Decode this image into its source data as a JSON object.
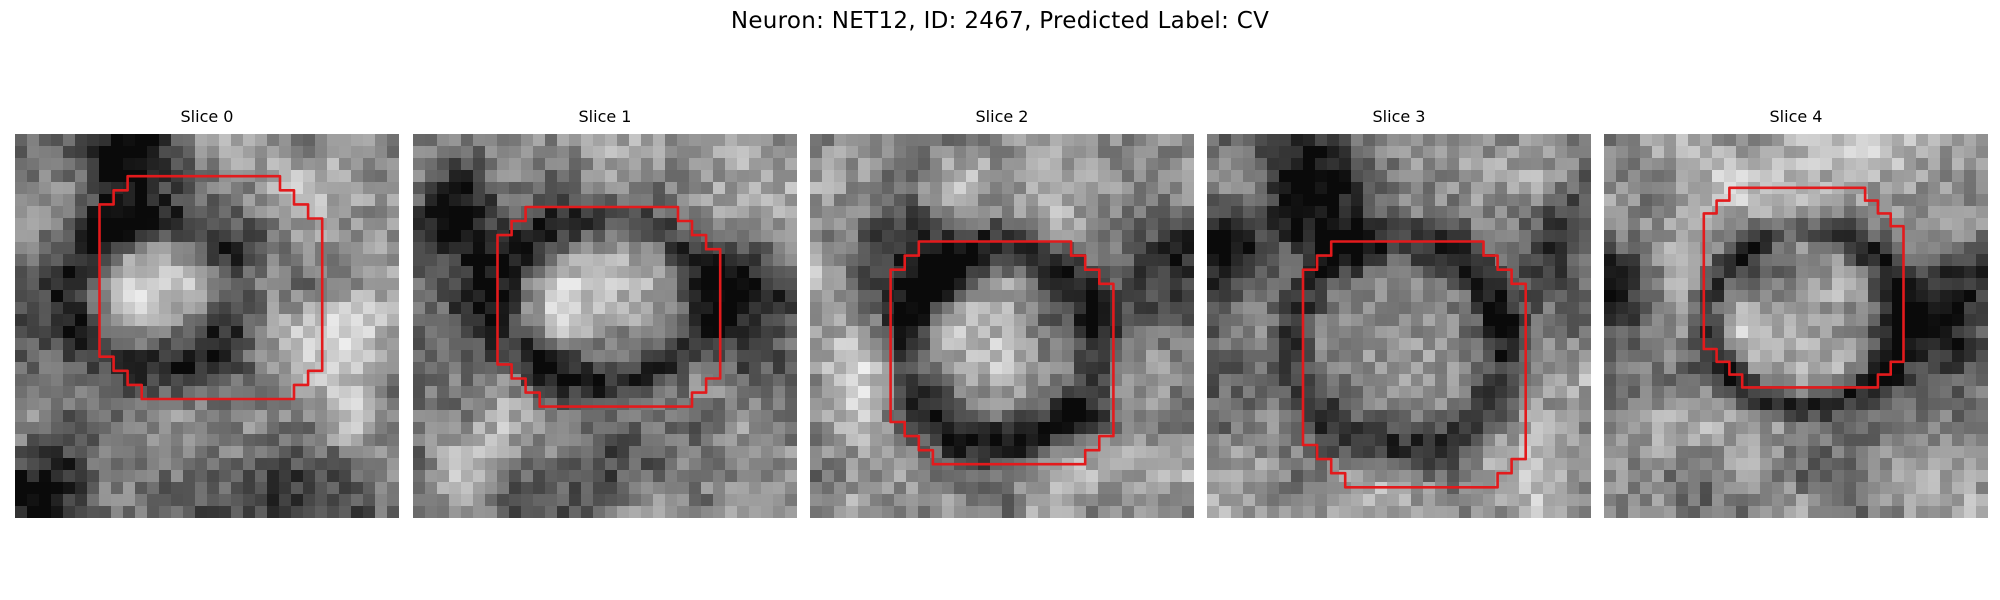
{
  "figure": {
    "title": "Neuron: NET12, ID: 2467, Predicted Label: CV"
  },
  "colors": {
    "contour": "#e31a1c",
    "background": "#ffffff"
  },
  "slices": [
    {
      "title": "Slice 0"
    },
    {
      "title": "Slice 1"
    },
    {
      "title": "Slice 2"
    },
    {
      "title": "Slice 3"
    },
    {
      "title": "Slice 4"
    }
  ]
}
